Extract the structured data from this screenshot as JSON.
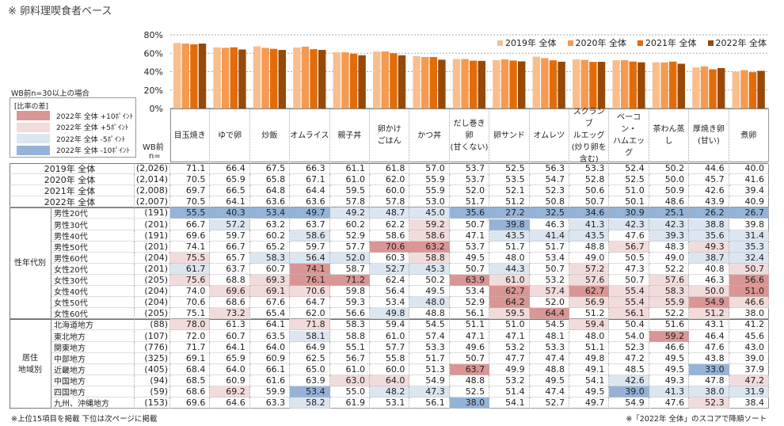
{
  "title": "※ 卵料理喫食者ベース",
  "condition": "WB前n=30以上の場合",
  "heat_legend": {
    "title": "[比率の差]",
    "items": [
      "2022年 全体 +10ﾎﾟｲﾝﾄ",
      "2022年 全体 +5ﾎﾟｲﾝﾄ",
      "2022年 全体 -5ﾎﾟｲﾝﾄ",
      "2022年 全体 -10ﾎﾟｲﾝﾄ"
    ],
    "colors": [
      "#DA9694",
      "#F2DCDB",
      "#DCE6F1",
      "#95B3D7"
    ]
  },
  "n_header": [
    "WB前",
    "n="
  ],
  "footnote_left": "※上位15項目を掲載 下位は次ページに掲載",
  "footnote_right": "※「2022年 全体」のスコアで降順ソート",
  "chart_data": {
    "type": "bar",
    "categories": [
      "目玉焼き",
      "ゆで卵",
      "炒飯",
      "オムライス",
      "親子丼",
      "卵かけ\nごはん",
      "かつ丼",
      "だし巻き卵\n(甘くない)",
      "卵サンド",
      "オムレツ",
      "スクランブ\nルエッグ\n(炒り卵を\n含む)",
      "ベーコン・\nハムエッグ",
      "茶わん蒸し",
      "厚焼き卵\n(甘い)",
      "煮卵"
    ],
    "yticks": [
      "0%",
      "20%",
      "40%",
      "60%",
      "80%"
    ],
    "ylim": [
      0,
      80
    ],
    "grid": true,
    "legend": "top-right",
    "series": [
      {
        "name": "2019年 全体",
        "color": "#F9BE8E",
        "n": "(2,026)",
        "values": [
          71.1,
          66.4,
          67.5,
          66.3,
          61.1,
          61.8,
          57.0,
          53.7,
          52.5,
          56.3,
          53.3,
          52.4,
          50.2,
          44.6,
          40.0
        ]
      },
      {
        "name": "2020年 全体",
        "color": "#F59A50",
        "n": "(2,014)",
        "values": [
          70.5,
          65.9,
          65.8,
          67.1,
          61.0,
          62.0,
          55.9,
          53.7,
          53.5,
          54.7,
          52.8,
          52.5,
          50.0,
          45.7,
          41.6
        ]
      },
      {
        "name": "2021年 全体",
        "color": "#E36C0A",
        "n": "(2,008)",
        "values": [
          69.7,
          66.5,
          64.8,
          64.4,
          59.5,
          60.0,
          55.9,
          52.0,
          52.1,
          52.3,
          50.6,
          51.0,
          50.9,
          42.6,
          39.4
        ]
      },
      {
        "name": "2022年 全体",
        "color": "#984807",
        "n": "(2,007)",
        "values": [
          70.5,
          64.1,
          63.6,
          63.6,
          57.8,
          57.8,
          53.0,
          51.7,
          51.2,
          50.8,
          50.7,
          50.1,
          48.6,
          43.9,
          40.9
        ]
      }
    ]
  },
  "groups": [
    {
      "label": "性年代別",
      "rows": [
        {
          "label": "男性20代",
          "n": "(191)",
          "values": [
            55.5,
            40.3,
            53.4,
            49.7,
            49.2,
            48.7,
            45.0,
            35.6,
            27.2,
            32.5,
            34.6,
            30.9,
            25.1,
            26.2,
            26.7
          ]
        },
        {
          "label": "男性30代",
          "n": "(201)",
          "values": [
            66.7,
            57.2,
            63.2,
            63.7,
            60.2,
            62.2,
            59.2,
            50.7,
            39.8,
            46.3,
            41.3,
            42.3,
            42.3,
            38.8,
            39.8
          ]
        },
        {
          "label": "男性40代",
          "n": "(191)",
          "values": [
            69.6,
            59.7,
            60.2,
            58.6,
            52.9,
            58.6,
            58.6,
            47.1,
            43.5,
            41.4,
            43.5,
            47.6,
            39.3,
            35.6,
            31.4
          ]
        },
        {
          "label": "男性50代",
          "n": "(201)",
          "values": [
            74.1,
            66.7,
            65.2,
            59.7,
            57.7,
            70.6,
            63.2,
            53.7,
            51.7,
            51.7,
            48.8,
            56.7,
            48.3,
            49.3,
            35.3
          ]
        },
        {
          "label": "男性60代",
          "n": "(204)",
          "values": [
            75.5,
            65.7,
            58.3,
            56.4,
            52.0,
            60.3,
            58.8,
            49.5,
            48.0,
            53.4,
            49.0,
            50.5,
            49.0,
            38.7,
            32.4
          ]
        },
        {
          "label": "女性20代",
          "n": "(201)",
          "values": [
            61.7,
            63.7,
            60.7,
            74.1,
            58.7,
            52.7,
            45.3,
            50.7,
            44.3,
            50.7,
            57.2,
            47.3,
            52.2,
            40.8,
            50.7
          ]
        },
        {
          "label": "女性30代",
          "n": "(205)",
          "values": [
            75.6,
            68.8,
            69.3,
            76.1,
            71.2,
            62.4,
            50.2,
            63.9,
            61.0,
            53.2,
            57.6,
            50.7,
            57.6,
            46.3,
            56.6
          ]
        },
        {
          "label": "女性40代",
          "n": "(204)",
          "values": [
            74.0,
            69.6,
            69.1,
            70.6,
            59.8,
            56.4,
            49.5,
            53.4,
            62.7,
            57.4,
            62.7,
            55.4,
            58.3,
            50.0,
            51.0
          ]
        },
        {
          "label": "女性50代",
          "n": "(204)",
          "values": [
            70.6,
            68.6,
            67.6,
            64.7,
            59.3,
            53.4,
            48.0,
            52.9,
            64.2,
            52.0,
            56.9,
            55.4,
            55.9,
            54.9,
            46.6
          ]
        },
        {
          "label": "女性60代",
          "n": "(205)",
          "values": [
            75.1,
            73.2,
            65.4,
            62.0,
            56.6,
            49.8,
            48.8,
            56.1,
            59.5,
            64.4,
            51.2,
            56.1,
            52.2,
            51.2,
            38.0
          ]
        }
      ]
    },
    {
      "label": "居住\n地域別",
      "rows": [
        {
          "label": "北海道地方",
          "n": "(88)",
          "values": [
            78.0,
            61.3,
            64.1,
            71.8,
            58.3,
            59.4,
            54.5,
            51.1,
            51.0,
            54.5,
            59.4,
            50.4,
            51.6,
            43.1,
            41.2
          ]
        },
        {
          "label": "東北地方",
          "n": "(107)",
          "values": [
            72.0,
            60.7,
            63.5,
            58.1,
            58.8,
            61.0,
            57.4,
            47.1,
            47.1,
            48.1,
            48.0,
            54.0,
            59.2,
            46.4,
            45.6
          ]
        },
        {
          "label": "関東地方",
          "n": "(776)",
          "values": [
            71.7,
            64.1,
            64.0,
            64.9,
            55.1,
            57.7,
            53.3,
            49.6,
            53.2,
            53.3,
            51.1,
            52.3,
            46.6,
            47.6,
            43.0
          ]
        },
        {
          "label": "中部地方",
          "n": "(325)",
          "values": [
            69.1,
            65.9,
            60.9,
            62.5,
            56.7,
            55.8,
            51.7,
            50.7,
            47.7,
            47.4,
            49.8,
            47.2,
            49.5,
            43.8,
            39.0
          ]
        },
        {
          "label": "近畿地方",
          "n": "(405)",
          "values": [
            68.4,
            64.0,
            66.1,
            65.0,
            61.0,
            60.0,
            51.3,
            63.7,
            49.9,
            48.8,
            49.1,
            48.5,
            49.5,
            33.0,
            37.9
          ]
        },
        {
          "label": "中国地方",
          "n": "(94)",
          "values": [
            68.5,
            60.9,
            61.6,
            63.9,
            63.0,
            64.0,
            54.9,
            48.8,
            53.2,
            49.5,
            54.1,
            42.6,
            49.3,
            47.8,
            47.2
          ]
        },
        {
          "label": "四国地方",
          "n": "(59)",
          "values": [
            68.6,
            69.2,
            59.9,
            53.4,
            55.0,
            48.2,
            47.3,
            52.5,
            51.4,
            47.4,
            49.5,
            39.0,
            41.3,
            38.0,
            31.9
          ]
        },
        {
          "label": "九州、沖縄地方",
          "n": "(153)",
          "values": [
            69.6,
            64.6,
            63.3,
            58.2,
            61.9,
            53.1,
            56.1,
            38.0,
            54.1,
            52.7,
            49.7,
            54.9,
            47.6,
            52.3,
            38.4
          ]
        }
      ]
    }
  ]
}
